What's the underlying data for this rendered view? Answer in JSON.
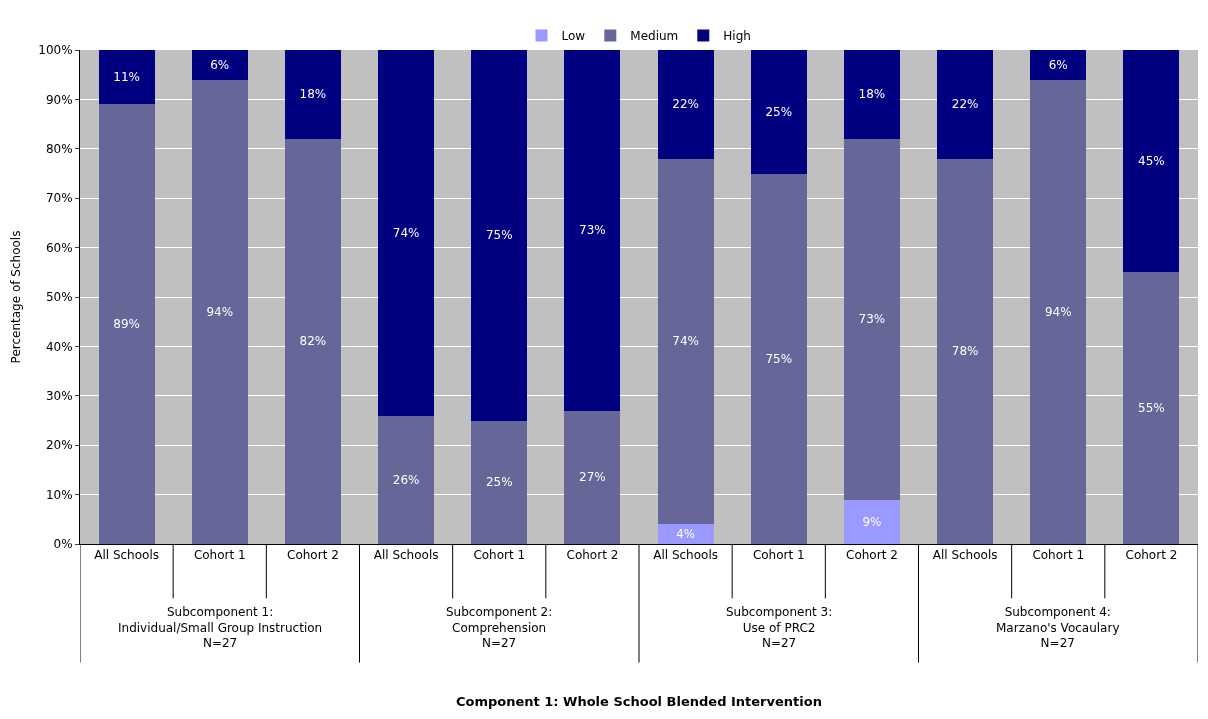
{
  "chart_data": {
    "type": "bar",
    "stacked": true,
    "ylabel": "Percentage of Schools",
    "categories": [
      "All Schools",
      "Cohort 1",
      "Cohort 2",
      "All Schools",
      "Cohort 1",
      "Cohort 2",
      "All Schools",
      "Cohort 1",
      "Cohort 2",
      "All Schools",
      "Cohort 1",
      "Cohort 2"
    ],
    "series": [
      {
        "name": "Low",
        "color": "#9999ff",
        "values": [
          0,
          0,
          0,
          0,
          0,
          0,
          4,
          0,
          9,
          0,
          0,
          0
        ],
        "value_labels": [
          null,
          null,
          null,
          null,
          null,
          null,
          "4%",
          null,
          "9%",
          null,
          null,
          null
        ]
      },
      {
        "name": "Medium",
        "color": "#666699",
        "values": [
          89,
          94,
          82,
          26,
          25,
          27,
          74,
          75,
          73,
          78,
          94,
          55
        ],
        "value_labels": [
          "89%",
          "94%",
          "82%",
          "26%",
          "25%",
          "27%",
          "74%",
          "75%",
          "73%",
          "78%",
          "94%",
          "55%"
        ]
      },
      {
        "name": "High",
        "color": "#000080",
        "values": [
          11,
          6,
          18,
          74,
          75,
          73,
          22,
          25,
          18,
          22,
          6,
          45
        ],
        "value_labels": [
          "11%",
          "6%",
          "18%",
          "74%",
          "75%",
          "73%",
          "22%",
          "25%",
          "18%",
          "22%",
          "6%",
          "45%"
        ]
      }
    ],
    "ylim": [
      0,
      100
    ],
    "yticks": [
      {
        "value": 0,
        "label": "0%"
      },
      {
        "value": 10,
        "label": "10%"
      },
      {
        "value": 20,
        "label": "20%"
      },
      {
        "value": 30,
        "label": "30%"
      },
      {
        "value": 40,
        "label": "40%"
      },
      {
        "value": 50,
        "label": "50%"
      },
      {
        "value": 60,
        "label": "60%"
      },
      {
        "value": 70,
        "label": "70%"
      },
      {
        "value": 80,
        "label": "80%"
      },
      {
        "value": 90,
        "label": "90%"
      },
      {
        "value": 100,
        "label": "100%"
      }
    ],
    "grid": "y",
    "legend": "top",
    "annotations": [
      "Subcomponent 1:\nIndividual/Small Group Instruction\nN=27",
      "Subcomponent 2:\nComprehension\nN=27",
      "Subcomponent 3:\nUse of PRC2\nN=27",
      "Subcomponent 4:\nMarzano's Vocaulary\nN=27",
      "Component 1: Whole School Blended Intervention"
    ]
  }
}
